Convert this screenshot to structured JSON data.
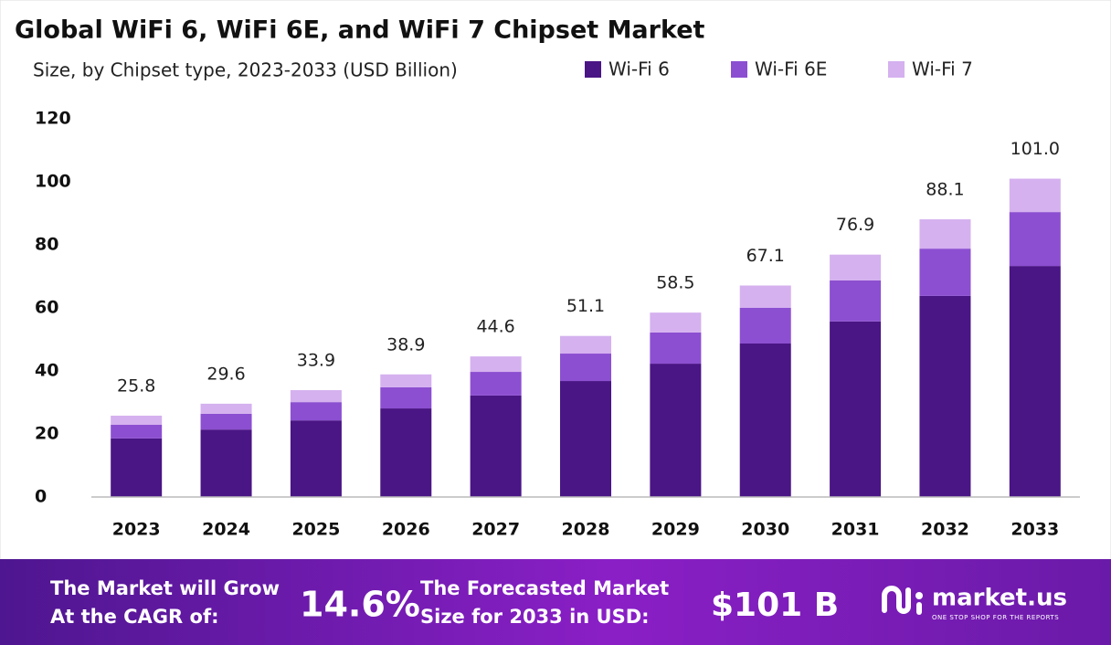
{
  "chart_data": {
    "type": "stacked-bar",
    "title": "Global WiFi 6, WiFi 6E, and WiFi 7 Chipset Market",
    "subtitle": "Size, by Chipset type, 2023-2033 (USD Billion)",
    "categories": [
      "2023",
      "2024",
      "2025",
      "2026",
      "2027",
      "2028",
      "2029",
      "2030",
      "2031",
      "2032",
      "2033"
    ],
    "series": [
      {
        "name": "Wi-Fi 6",
        "color": "#4a1585",
        "values": [
          18.6,
          21.4,
          24.3,
          28.1,
          32.2,
          36.8,
          42.3,
          48.7,
          55.7,
          63.8,
          73.3
        ]
      },
      {
        "name": "Wi-Fi 6E",
        "color": "#8c4fd1",
        "values": [
          4.3,
          5.0,
          5.8,
          6.7,
          7.5,
          8.7,
          9.9,
          11.3,
          13.0,
          15.0,
          17.1
        ]
      },
      {
        "name": "Wi-Fi 7",
        "color": "#d5b1ef",
        "values": [
          2.9,
          3.2,
          3.8,
          4.1,
          4.9,
          5.6,
          6.3,
          7.1,
          8.2,
          9.3,
          10.6
        ]
      }
    ],
    "totals": [
      25.8,
      29.6,
      33.9,
      38.9,
      44.6,
      51.1,
      58.5,
      67.1,
      76.9,
      88.1,
      101.0
    ],
    "total_labels": [
      "25.8",
      "29.6",
      "33.9",
      "38.9",
      "44.6",
      "51.1",
      "58.5",
      "67.1",
      "76.9",
      "88.1",
      "101.0"
    ],
    "ylim": [
      0,
      120
    ],
    "yticks": [
      0,
      20,
      40,
      60,
      80,
      100,
      120
    ],
    "grid": false
  },
  "footer": {
    "cagr_text": [
      "The Market will Grow",
      "At the CAGR of:"
    ],
    "cagr_value": "14.6%",
    "forecast_text": [
      "The Forecasted Market",
      "Size for 2033 in USD:"
    ],
    "forecast_value": "$101 B",
    "brand": "market.us",
    "tagline": "ONE STOP SHOP FOR THE REPORTS"
  }
}
